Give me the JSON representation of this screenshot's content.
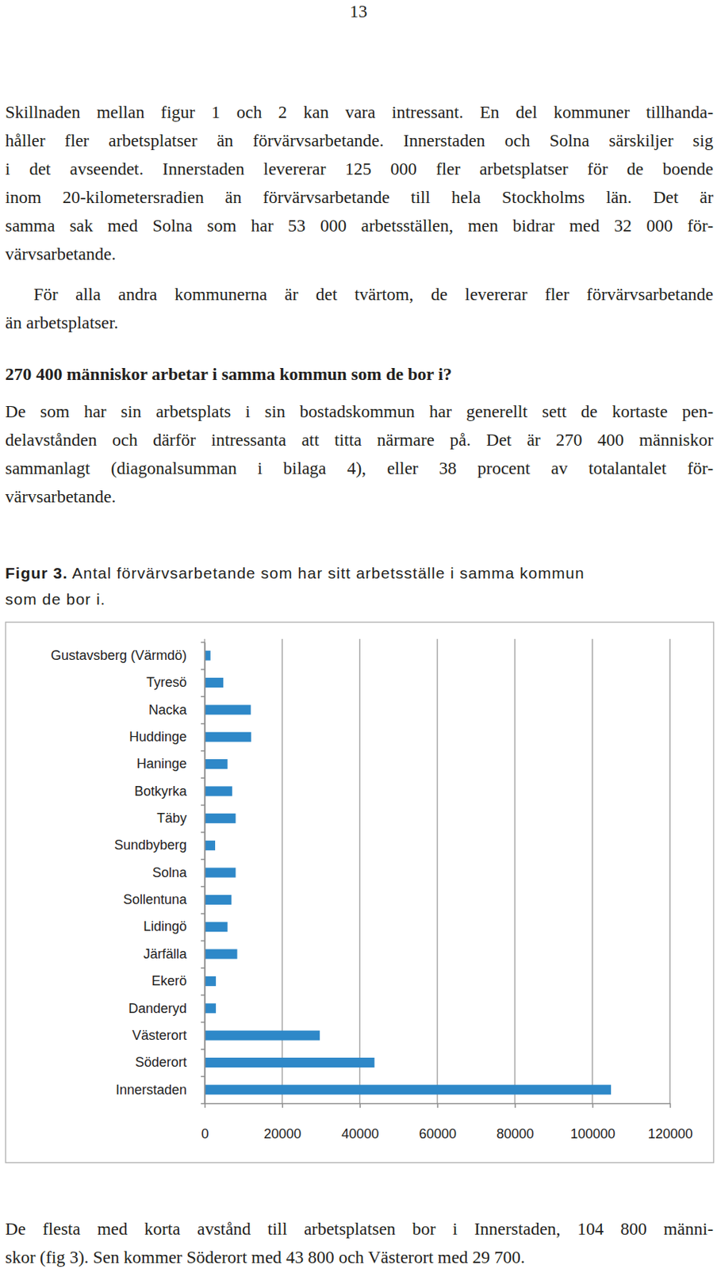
{
  "page_number": "13",
  "paragraphs": [
    {
      "lines": [
        "Skillnaden mellan figur 1 och 2 kan vara intressant. En del kommuner tillhanda-",
        "håller fler arbetsplatser än förvärvsarbetande. Innerstaden och Solna särskiljer sig",
        "i det avseendet. Innerstaden levererar 125 000 fler arbetsplatser för de boende",
        "inom 20-kilometersradien än förvärvsarbetande till hela Stockholms län. Det är",
        "samma sak med Solna som har 53 000 arbetsställen, men bidrar med 32 000 för-",
        "värvsarbetande."
      ]
    },
    {
      "lines": [
        "För alla andra kommunerna är det tvärtom, de levererar fler förvärvsarbetande",
        "än arbetsplatser."
      ]
    }
  ],
  "heading": "270 400 människor arbetar i samma kommun som de bor i?",
  "section_paragraph": {
    "lines": [
      "De som har sin arbetsplats i sin bostadskommun har generellt sett de kortaste pen-",
      "delavstånden och därför intressanta att titta närmare på. Det är 270 400 människor",
      "sammanlagt (diagonalsumman i bilaga 4), eller 38 procent av totalantalet för-",
      "värvsarbetande."
    ]
  },
  "figure": {
    "label": "Figur 3.",
    "caption_lines": [
      "Antal förvärvsarbetande som har sitt arbetsställe i samma kommun",
      "som de bor i."
    ]
  },
  "chart_data": {
    "type": "bar",
    "orientation": "horizontal",
    "categories": [
      "Gustavsberg (Värmdö)",
      "Tyresö",
      "Nacka",
      "Huddinge",
      "Haninge",
      "Botkyrka",
      "Täby",
      "Sundbyberg",
      "Solna",
      "Sollentuna",
      "Lidingö",
      "Järfälla",
      "Ekerö",
      "Danderyd",
      "Västerort",
      "Söderort",
      "Innerstaden"
    ],
    "values": [
      1500,
      4800,
      11900,
      12000,
      5900,
      7100,
      8000,
      2700,
      8000,
      6900,
      5900,
      8400,
      2900,
      2900,
      29700,
      43800,
      104800
    ],
    "color": "#2e88c8",
    "xlim": [
      0,
      120000
    ],
    "xticks": [
      0,
      20000,
      40000,
      60000,
      80000,
      100000,
      120000
    ],
    "grid": true
  },
  "closing": {
    "lines": [
      "De flesta med korta avstånd till arbetsplatsen bor i Innerstaden, 104 800 männi-",
      "skor (fig 3). Sen kommer Söderort med 43 800 och Västerort med 29 700."
    ]
  }
}
